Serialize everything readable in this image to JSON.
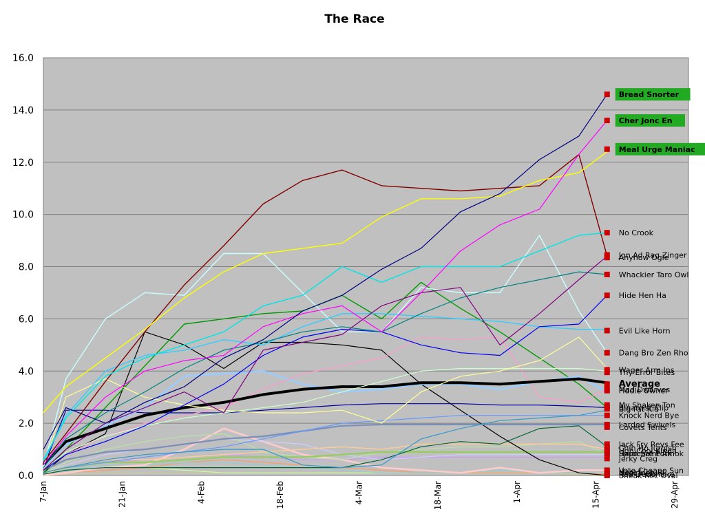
{
  "chart_data": {
    "type": "line",
    "title": "The Race",
    "xlabel": "",
    "ylabel": "",
    "ylim": [
      0,
      16
    ],
    "yticks": [
      "0.0",
      "2.0",
      "4.0",
      "6.0",
      "8.0",
      "10.0",
      "12.0",
      "14.0",
      "16.0"
    ],
    "xticks": [
      "7-Jan",
      "21-Jan",
      "4-Feb",
      "18-Feb",
      "4-Mar",
      "18-Mar",
      "1-Apr",
      "15-Apr",
      "29-Apr"
    ],
    "x": [
      "7-Jan",
      "11-Jan",
      "18-Jan",
      "25-Jan",
      "1-Feb",
      "8-Feb",
      "15-Feb",
      "22-Feb",
      "1-Mar",
      "8-Mar",
      "15-Mar",
      "22-Mar",
      "29-Mar",
      "5-Apr",
      "12-Apr",
      "17-Apr"
    ],
    "grid": true,
    "background": "#c0c0c0",
    "legend": "labels at line ends (right)",
    "highlight_color": "#22aa22",
    "marker_color": "#cc0000",
    "series": [
      {
        "name": "Bread Snorter",
        "color": "#000080",
        "width": 1.2,
        "highlight": true,
        "values": [
          1.0,
          2.6,
          2.0,
          2.8,
          3.4,
          4.5,
          5.2,
          6.3,
          6.9,
          7.9,
          8.7,
          10.1,
          10.8,
          12.1,
          13.0,
          14.6
        ]
      },
      {
        "name": "Cher Jonc En",
        "color": "#ff00ff",
        "width": 1.2,
        "highlight": true,
        "values": [
          0.4,
          1.5,
          3.0,
          4.0,
          4.4,
          4.6,
          5.7,
          6.2,
          6.5,
          5.5,
          7.0,
          8.6,
          9.6,
          10.2,
          12.3,
          13.6
        ]
      },
      {
        "name": "Meal Urge Maniac",
        "color": "#ffff00",
        "width": 1.4,
        "highlight": true,
        "values": [
          2.4,
          3.4,
          4.5,
          5.6,
          6.8,
          7.8,
          8.5,
          8.7,
          8.9,
          9.9,
          10.6,
          10.6,
          10.7,
          11.3,
          11.6,
          12.4
        ]
      },
      {
        "name": "No Crook",
        "color": "#00e5e5",
        "width": 1.4,
        "values": [
          0.6,
          2.2,
          3.8,
          4.5,
          5.0,
          5.5,
          6.5,
          6.9,
          8.0,
          7.4,
          8.0,
          8.0,
          8.0,
          8.6,
          9.2,
          9.3
        ]
      },
      {
        "name": "Jon Ad Rag Zinger",
        "color": "#800080",
        "width": 1.2,
        "values": [
          0.2,
          1.0,
          2.0,
          2.6,
          3.2,
          2.4,
          4.8,
          5.1,
          5.4,
          6.5,
          7.0,
          7.2,
          5.0,
          6.2,
          7.5,
          8.4
        ]
      },
      {
        "name": "Anyhow Ogle",
        "color": "#800000",
        "width": 1.4,
        "values": [
          0.5,
          1.6,
          3.6,
          5.5,
          7.3,
          8.8,
          10.4,
          11.3,
          11.7,
          11.1,
          11.0,
          10.9,
          11.0,
          11.1,
          12.3,
          8.4
        ]
      },
      {
        "name": "Whackier Taro Owl",
        "color": "#008080",
        "width": 1.2,
        "values": [
          0.3,
          1.4,
          2.4,
          3.2,
          4.1,
          4.8,
          5.1,
          5.5,
          5.7,
          5.5,
          6.2,
          6.8,
          7.2,
          7.5,
          7.8,
          7.7
        ]
      },
      {
        "name": "Hide Hen Ha",
        "color": "#0000ee",
        "width": 1.2,
        "values": [
          0.2,
          0.8,
          1.3,
          1.9,
          2.7,
          3.5,
          4.6,
          5.3,
          5.6,
          5.5,
          5.0,
          4.7,
          4.6,
          5.7,
          5.8,
          6.9
        ]
      },
      {
        "name": "Evil Like Horn",
        "color": "#33ccff",
        "width": 1.4,
        "values": [
          0.5,
          2.3,
          4.0,
          4.6,
          4.8,
          5.2,
          5.0,
          5.7,
          6.2,
          6.2,
          6.1,
          6.0,
          5.9,
          5.7,
          5.6,
          5.6
        ]
      },
      {
        "name": "Dang Bro Zen Rho",
        "color": "#ccffff",
        "width": 1.4,
        "values": [
          0.3,
          3.7,
          6.0,
          7.0,
          6.9,
          8.5,
          8.5,
          7.0,
          5.5,
          5.5,
          7.2,
          7.0,
          7.0,
          9.2,
          6.3,
          4.7
        ]
      },
      {
        "name": "Wager Arm Ins",
        "color": "#ffff99",
        "width": 1.2,
        "values": [
          0.3,
          3.0,
          3.7,
          3.0,
          2.7,
          2.5,
          2.4,
          2.4,
          2.5,
          2.0,
          3.2,
          3.8,
          4.0,
          4.4,
          5.3,
          4.1
        ]
      },
      {
        "name": "Thy Error Bites",
        "color": "#ccffcc",
        "width": 1.2,
        "values": [
          0.2,
          0.9,
          1.5,
          1.9,
          2.2,
          2.4,
          2.6,
          2.8,
          3.2,
          3.6,
          4.0,
          4.1,
          4.1,
          4.1,
          4.1,
          4.0
        ]
      },
      {
        "name": "Average",
        "color": "#000000",
        "width": 4.0,
        "bold": true,
        "values": [
          0.4,
          1.3,
          1.8,
          2.3,
          2.6,
          2.8,
          3.1,
          3.3,
          3.4,
          3.4,
          3.55,
          3.55,
          3.5,
          3.6,
          3.7,
          3.55
        ]
      },
      {
        "name": "Mad Dwarves",
        "color": "#ff99cc",
        "width": 1.2,
        "values": [
          0.2,
          0.8,
          1.5,
          2.0,
          2.3,
          2.6,
          3.3,
          3.9,
          4.2,
          4.5,
          5.3,
          5.2,
          5.3,
          3.0,
          2.8,
          3.3
        ]
      },
      {
        "name": "Fiddle Owner",
        "color": "#99ccff",
        "width": 2.5,
        "values": [
          0.3,
          1.2,
          1.9,
          2.6,
          3.8,
          3.9,
          4.0,
          3.5,
          3.2,
          3.3,
          3.5,
          3.5,
          3.3,
          3.6,
          3.8,
          3.2
        ]
      },
      {
        "name": "My Shaken Ton",
        "color": "#000099",
        "width": 1.2,
        "values": [
          0.3,
          2.5,
          2.5,
          2.4,
          2.4,
          2.4,
          2.5,
          2.6,
          2.7,
          2.75,
          2.75,
          2.75,
          2.7,
          2.7,
          2.65,
          2.6
        ]
      },
      {
        "name": "Big Fat Kid",
        "color": "#3399cc",
        "width": 1.2,
        "values": [
          0.1,
          0.3,
          0.6,
          0.8,
          0.9,
          1.0,
          1.0,
          0.4,
          0.3,
          0.4,
          1.4,
          1.8,
          2.1,
          2.2,
          2.3,
          2.5
        ]
      },
      {
        "name": "Bigamist Clip",
        "color": "#009900",
        "width": 1.4,
        "values": [
          0.1,
          1.0,
          2.6,
          4.2,
          5.8,
          6.0,
          6.2,
          6.3,
          6.9,
          6.0,
          7.4,
          6.4,
          5.5,
          4.5,
          3.5,
          2.6
        ]
      },
      {
        "name": "Knock Nerd Bye",
        "color": "#6699ff",
        "width": 1.2,
        "values": [
          0.1,
          0.3,
          0.5,
          0.7,
          0.9,
          1.1,
          1.4,
          1.7,
          2.0,
          2.1,
          2.2,
          2.3,
          2.3,
          2.3,
          2.3,
          2.3
        ]
      },
      {
        "name": "Larded Swivels",
        "color": "#7a8fb8",
        "width": 2.2,
        "values": [
          0.2,
          0.6,
          0.9,
          1.0,
          1.2,
          1.4,
          1.5,
          1.7,
          1.9,
          1.95,
          1.95,
          1.95,
          1.95,
          1.95,
          1.95,
          1.95
        ]
      },
      {
        "name": "Covets Tents",
        "color": "#000000",
        "width": 1.2,
        "values": [
          0.1,
          0.8,
          1.6,
          5.5,
          5.0,
          4.1,
          5.1,
          5.1,
          5.0,
          4.8,
          3.5,
          2.5,
          1.5,
          0.6,
          0.1,
          0.0
        ]
      },
      {
        "name": "Jack Fry Revs Fee",
        "color": "#006633",
        "width": 1.2,
        "values": [
          0.05,
          0.2,
          0.3,
          0.3,
          0.3,
          0.3,
          0.3,
          0.3,
          0.3,
          0.6,
          1.1,
          1.3,
          1.2,
          1.8,
          1.9,
          1.1
        ]
      },
      {
        "name": "Chin Ho Jurnish",
        "color": "#ffcc99",
        "width": 1.4,
        "values": [
          0.05,
          0.3,
          0.6,
          0.6,
          0.7,
          0.8,
          0.9,
          1.0,
          1.1,
          1.0,
          1.2,
          1.2,
          1.2,
          1.2,
          1.2,
          1.0
        ]
      },
      {
        "name": "Ugh Cool Kinda",
        "color": "#99cc66",
        "width": 2.5,
        "values": [
          0.1,
          0.3,
          0.5,
          0.5,
          0.6,
          0.7,
          0.7,
          0.7,
          0.8,
          0.9,
          0.9,
          0.9,
          0.9,
          0.9,
          0.9,
          0.9
        ]
      },
      {
        "name": "Spun Saint Amok",
        "color": "#bbddaa",
        "width": 1.4,
        "values": [
          0.1,
          0.5,
          1.0,
          1.3,
          1.5,
          1.6,
          0.9,
          0.7,
          0.6,
          0.9,
          1.0,
          1.1,
          1.1,
          1.2,
          1.3,
          0.8
        ]
      },
      {
        "name": "Hardcore Pork",
        "color": "#ccccff",
        "width": 1.2,
        "values": [
          0.1,
          0.4,
          0.8,
          1.0,
          1.2,
          1.4,
          1.3,
          1.2,
          0.8,
          0.6,
          0.7,
          0.8,
          0.8,
          0.8,
          0.8,
          0.8
        ]
      },
      {
        "name": "Jerky Creg",
        "color": "#cc99ff",
        "width": 1.2,
        "values": [
          0.1,
          0.3,
          0.5,
          0.6,
          0.7,
          0.8,
          0.7,
          0.6,
          0.6,
          0.7,
          0.7,
          0.7,
          0.7,
          0.7,
          0.7,
          0.7
        ]
      },
      {
        "name": "Vote Cheapo Sun",
        "color": "#ffcccc",
        "width": 2.5,
        "values": [
          0.0,
          0.1,
          0.3,
          0.4,
          1.0,
          1.8,
          1.3,
          0.8,
          0.6,
          0.3,
          0.2,
          0.1,
          0.3,
          0.1,
          0.2,
          0.2
        ]
      },
      {
        "name": "Hare Luggar",
        "color": "#99cccc",
        "width": 1.2,
        "values": [
          0.0,
          0.2,
          0.4,
          0.4,
          0.5,
          0.5,
          0.4,
          0.3,
          0.2,
          0.1,
          0.1,
          0.1,
          0.2,
          0.1,
          0.1,
          0.1
        ]
      },
      {
        "name": "Neal Inch",
        "color": "#ff9966",
        "width": 1.2,
        "values": [
          0.0,
          0.1,
          0.2,
          0.3,
          0.5,
          0.6,
          0.5,
          0.4,
          0.3,
          0.2,
          0.1,
          0.1,
          0.1,
          0.1,
          0.1,
          0.05
        ]
      },
      {
        "name": "Red Debonaire",
        "color": "#ccff99",
        "width": 1.2,
        "values": [
          0.0,
          0.1,
          0.3,
          0.3,
          0.2,
          0.1,
          0.1,
          0.1,
          0.1,
          0.1,
          0.1,
          0.1,
          0.1,
          0.1,
          0.1,
          0.1
        ]
      },
      {
        "name": "Sneak Rec Oval",
        "color": "#cccc99",
        "width": 1.2,
        "values": [
          0.0,
          0.05,
          0.1,
          0.1,
          0.1,
          0.1,
          0.1,
          0.1,
          0.1,
          0.1,
          0.1,
          0.1,
          0.1,
          0.1,
          0.05,
          0.0
        ]
      }
    ],
    "end_labels": [
      {
        "text": "Bread Snorter",
        "y": 14.6,
        "style": "lead"
      },
      {
        "text": "Cher Jonc En",
        "y": 13.6,
        "style": "lead"
      },
      {
        "text": "Meal Urge Maniac",
        "y": 12.5,
        "style": "lead"
      },
      {
        "text": "No Crook",
        "y": 9.3
      },
      {
        "text": "Jon Ad Rag Zinger",
        "y": 8.45
      },
      {
        "text": "Anyhow Ogle",
        "y": 8.35
      },
      {
        "text": "Whackier Taro Owl",
        "y": 7.7
      },
      {
        "text": "Hide Hen Ha",
        "y": 6.9
      },
      {
        "text": "Evil Like Horn",
        "y": 5.55
      },
      {
        "text": "Dang Bro Zen Rho",
        "y": 4.7
      },
      {
        "text": "Wager Arm Ins",
        "y": 4.05
      },
      {
        "text": "Thy Error Bites",
        "y": 3.95
      },
      {
        "text": "Average",
        "y": 3.5,
        "style": "avg"
      },
      {
        "text": "Mad Dwarves",
        "y": 3.3
      },
      {
        "text": "Fiddle Owner",
        "y": 3.25
      },
      {
        "text": "My Shaken Ton",
        "y": 2.7
      },
      {
        "text": "Big Fat Kid",
        "y": 2.55
      },
      {
        "text": "Bigamist Clip",
        "y": 2.6
      },
      {
        "text": "Knock Nerd Bye",
        "y": 2.3
      },
      {
        "text": "Larded Swivels",
        "y": 1.95
      },
      {
        "text": "Covets Tents",
        "y": 1.85
      },
      {
        "text": "Jack Fry Revs Fee",
        "y": 1.2
      },
      {
        "text": "Chin Ho Jurnish",
        "y": 1.05
      },
      {
        "text": "Ugh Cool Kinda",
        "y": 0.95
      },
      {
        "text": "Spun Saint Amok",
        "y": 0.85
      },
      {
        "text": "Hardcore Pork",
        "y": 0.85
      },
      {
        "text": "Jerky Creg",
        "y": 0.65
      },
      {
        "text": "Vote Cheapo Sun",
        "y": 0.2
      },
      {
        "text": "Hare Luggar",
        "y": 0.15
      },
      {
        "text": "Neal Inch",
        "y": 0.1
      },
      {
        "text": "Red Debonaire",
        "y": 0.05
      },
      {
        "text": "Sneak Rec Oval",
        "y": 0.0
      }
    ]
  }
}
